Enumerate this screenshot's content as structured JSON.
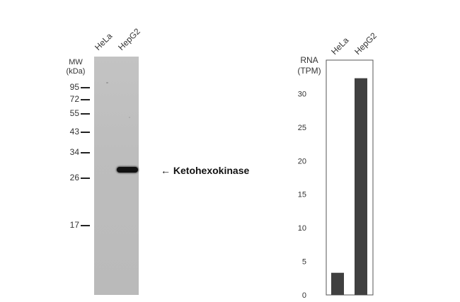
{
  "blot": {
    "lanes": [
      "HeLa",
      "HepG2"
    ],
    "mw_header_line1": "MW",
    "mw_header_line2": "(kDa)",
    "markers": [
      "95",
      "72",
      "55",
      "43",
      "34",
      "26",
      "17"
    ],
    "band_label": "Ketohexokinase",
    "arrow_glyph": "←"
  },
  "chart_data": {
    "type": "bar",
    "categories": [
      "HeLa",
      "HepG2"
    ],
    "values": [
      3.3,
      32.3
    ],
    "ylabel_line1": "RNA",
    "ylabel_line2": "(TPM)",
    "ylim": [
      0,
      35
    ],
    "yticks": [
      0,
      5,
      10,
      15,
      20,
      25,
      30
    ],
    "grid": false,
    "bar_color": "#404040"
  }
}
